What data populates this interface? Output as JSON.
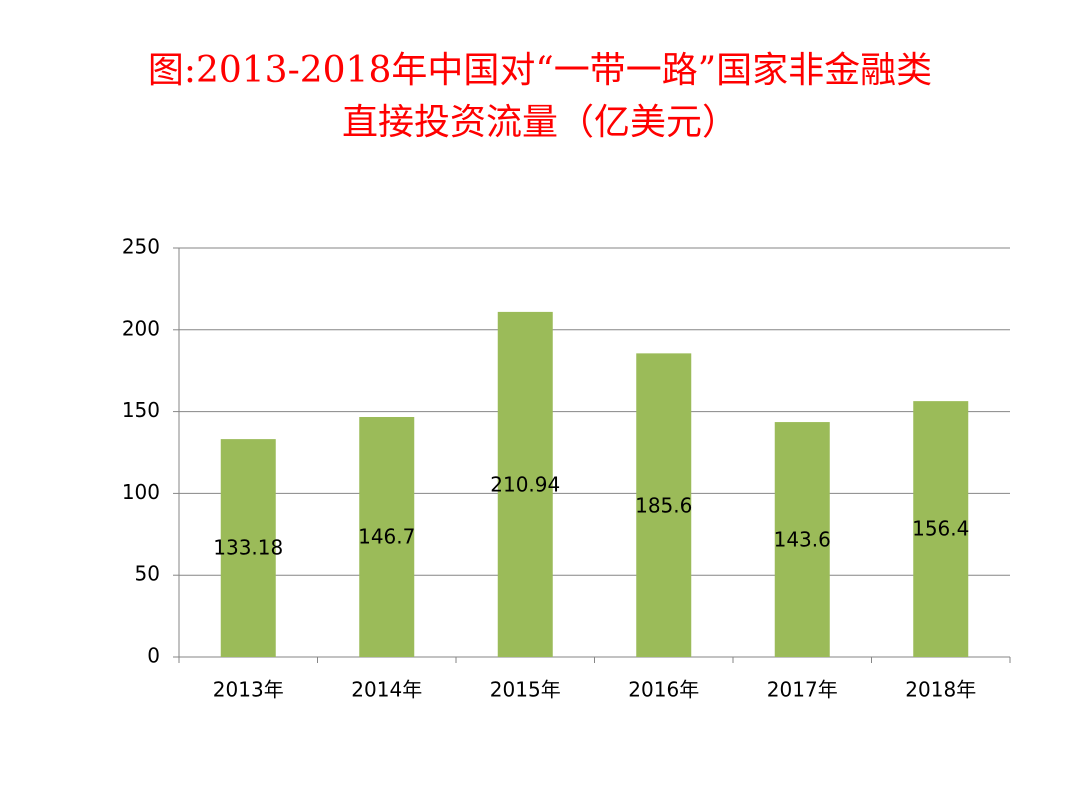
{
  "chart_data": {
    "type": "bar",
    "title": [
      "图:2013-2018年中国对“一带一路”国家非金融类",
      "直接投资流量（亿美元）"
    ],
    "categories": [
      "2013年",
      "2014年",
      "2015年",
      "2016年",
      "2017年",
      "2018年"
    ],
    "values": [
      133.18,
      146.7,
      210.94,
      185.6,
      143.6,
      156.4
    ],
    "color": "#9bbb59",
    "ylim": [
      0,
      250
    ],
    "yticks": [
      0,
      50,
      100,
      150,
      200,
      250
    ],
    "grid": true
  }
}
